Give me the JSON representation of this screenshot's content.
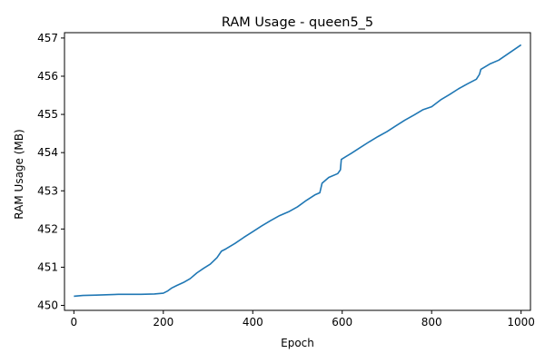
{
  "chart_data": {
    "type": "line",
    "title": "RAM Usage - queen5_5",
    "xlabel": "Epoch",
    "ylabel": "RAM Usage (MB)",
    "xlim": [
      -21,
      1021
    ],
    "ylim": [
      449.87,
      457.14
    ],
    "xticks": [
      0,
      200,
      400,
      600,
      800,
      1000
    ],
    "yticks": [
      450,
      451,
      452,
      453,
      454,
      455,
      456,
      457
    ],
    "xtick_labels": [
      "0",
      "200",
      "400",
      "600",
      "800",
      "1000"
    ],
    "ytick_labels": [
      "450",
      "451",
      "452",
      "453",
      "454",
      "455",
      "456",
      "457"
    ],
    "grid": false,
    "series": [
      {
        "color": "#1f77b4",
        "x": [
          0,
          20,
          50,
          100,
          150,
          180,
          200,
          210,
          218,
          230,
          245,
          260,
          275,
          290,
          305,
          320,
          330,
          340,
          360,
          380,
          400,
          420,
          440,
          460,
          480,
          500,
          520,
          540,
          550,
          555,
          570,
          590,
          596,
          598,
          620,
          640,
          660,
          680,
          700,
          720,
          740,
          760,
          780,
          800,
          820,
          840,
          860,
          880,
          900,
          907,
          910,
          930,
          950,
          970,
          990,
          1000
        ],
        "y": [
          450.24,
          450.26,
          450.27,
          450.29,
          450.29,
          450.3,
          450.32,
          450.38,
          450.45,
          450.52,
          450.6,
          450.7,
          450.85,
          450.97,
          451.08,
          451.25,
          451.42,
          451.48,
          451.62,
          451.78,
          451.93,
          452.08,
          452.22,
          452.35,
          452.45,
          452.58,
          452.75,
          452.9,
          452.95,
          453.2,
          453.35,
          453.45,
          453.55,
          453.82,
          453.98,
          454.13,
          454.28,
          454.42,
          454.55,
          454.7,
          454.85,
          454.98,
          455.12,
          455.2,
          455.38,
          455.52,
          455.67,
          455.8,
          455.92,
          456.05,
          456.18,
          456.32,
          456.42,
          456.58,
          456.74,
          456.82
        ]
      }
    ]
  }
}
